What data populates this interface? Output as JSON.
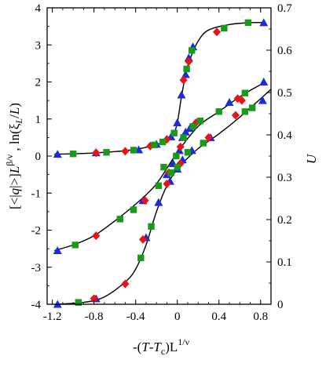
{
  "chart_data": {
    "type": "scatter",
    "title": "",
    "xlabel": {
      "pre": "-(",
      "T": "T",
      "mid": "-",
      "T2": "T",
      "sub": "c",
      "post": ")L",
      "sup": "1/ν"
    },
    "ylabel_left": {
      "open": "[<|",
      "q": "q",
      "close": "|>]",
      "L": "L",
      "sup": "β/ν",
      "comma": " , ln(ξ",
      "sub": "L",
      "tail": "/",
      "L2": "L",
      "end": ")"
    },
    "ylabel_right": "U",
    "xlim": [
      -1.25,
      0.9
    ],
    "ylim_left": [
      -4,
      4
    ],
    "ylim_right": [
      0,
      0.7
    ],
    "x_ticks": [
      "-1.2",
      "-0.8",
      "-0.4",
      "0",
      "0.4",
      "0.8"
    ],
    "x_tick_values": [
      -1.2,
      -0.8,
      -0.4,
      0,
      0.4,
      0.8
    ],
    "y_left_ticks": [
      "-4",
      "-3",
      "-2",
      "-1",
      "0",
      "1",
      "2",
      "3",
      "4"
    ],
    "y_left_tick_values": [
      -4,
      -3,
      -2,
      -1,
      0,
      1,
      2,
      3,
      4
    ],
    "y_right_ticks": [
      "0",
      "0.1",
      "0.2",
      "0.3",
      "0.4",
      "0.5",
      "0.6",
      "0.7"
    ],
    "y_right_tick_values": [
      0,
      0.1,
      0.2,
      0.3,
      0.4,
      0.5,
      0.6,
      0.7
    ],
    "colors": {
      "red": "#ee1111",
      "green": "#1a9a1a",
      "blue": "#1a2bdd",
      "curve": "#000000"
    },
    "curves": [
      {
        "axis": "left",
        "x": [
          -1.18,
          -0.9,
          -0.6,
          -0.4,
          -0.25,
          -0.15,
          -0.08,
          -0.04,
          0,
          0.04,
          0.08,
          0.12,
          0.2,
          0.3,
          0.5,
          0.7,
          0.85
        ],
        "y": [
          0.05,
          0.07,
          0.12,
          0.18,
          0.27,
          0.36,
          0.46,
          0.55,
          0.9,
          1.6,
          2.2,
          2.6,
          3.1,
          3.4,
          3.55,
          3.6,
          3.6
        ]
      },
      {
        "axis": "left",
        "x": [
          -1.18,
          -1.0,
          -0.8,
          -0.6,
          -0.4,
          -0.2,
          0,
          0.2,
          0.4,
          0.6,
          0.75,
          0.85
        ],
        "y": [
          -2.55,
          -2.4,
          -2.15,
          -1.75,
          -1.3,
          -0.75,
          0.1,
          0.8,
          1.2,
          1.6,
          1.85,
          2.0
        ]
      },
      {
        "axis": "left",
        "x": [
          -1.18,
          -0.9,
          -0.7,
          -0.5,
          -0.4,
          -0.3,
          -0.2,
          -0.1,
          0,
          0.1,
          0.2,
          0.4,
          0.6,
          0.9
        ],
        "y": [
          -4.0,
          -3.95,
          -3.8,
          -3.4,
          -3.05,
          -2.4,
          -1.5,
          -0.8,
          -0.35,
          -0.05,
          0.2,
          0.6,
          1.05,
          1.8
        ]
      }
    ],
    "series": [
      {
        "marker": "triangle",
        "color": "blue",
        "axis": "left",
        "points": [
          [
            -1.15,
            0.05
          ],
          [
            -0.78,
            0.09
          ],
          [
            -0.37,
            0.17
          ],
          [
            -0.2,
            0.32
          ],
          [
            -0.06,
            0.52
          ],
          [
            0.0,
            0.9
          ],
          [
            0.04,
            1.65
          ],
          [
            0.08,
            2.2
          ],
          [
            0.11,
            2.65
          ],
          [
            0.15,
            2.95
          ],
          [
            0.83,
            3.6
          ],
          [
            -1.15,
            -2.55
          ],
          [
            -0.33,
            -1.2
          ],
          [
            -0.1,
            -0.5
          ],
          [
            -0.04,
            -0.2
          ],
          [
            0.02,
            0.15
          ],
          [
            0.05,
            0.5
          ],
          [
            0.08,
            0.65
          ],
          [
            0.12,
            0.75
          ],
          [
            0.5,
            1.45
          ],
          [
            0.83,
            2.0
          ],
          [
            -1.15,
            -4.0
          ],
          [
            -0.78,
            -3.85
          ],
          [
            -0.3,
            -2.2
          ],
          [
            -0.18,
            -1.25
          ],
          [
            -0.07,
            -0.68
          ],
          [
            0.0,
            -0.35
          ],
          [
            0.05,
            -0.1
          ],
          [
            0.14,
            0.15
          ],
          [
            0.32,
            0.5
          ],
          [
            0.82,
            1.5
          ]
        ]
      },
      {
        "marker": "diamond",
        "color": "red",
        "axis": "left",
        "points": [
          [
            -0.78,
            0.09
          ],
          [
            -0.5,
            0.13
          ],
          [
            -0.26,
            0.27
          ],
          [
            -0.1,
            0.45
          ],
          [
            0.06,
            2.05
          ],
          [
            0.11,
            2.55
          ],
          [
            0.38,
            3.35
          ],
          [
            -0.78,
            -2.15
          ],
          [
            -0.31,
            -1.2
          ],
          [
            -0.08,
            -0.45
          ],
          [
            0.03,
            0.25
          ],
          [
            0.18,
            0.9
          ],
          [
            0.58,
            1.55
          ],
          [
            0.62,
            1.5
          ],
          [
            -0.8,
            -3.85
          ],
          [
            -0.5,
            -3.45
          ],
          [
            -0.33,
            -2.25
          ],
          [
            -0.1,
            -0.75
          ],
          [
            0.03,
            -0.2
          ],
          [
            0.3,
            0.5
          ],
          [
            0.56,
            1.1
          ]
        ]
      },
      {
        "marker": "square",
        "color": "green",
        "axis": "left",
        "points": [
          [
            -1.0,
            0.06
          ],
          [
            -0.68,
            0.1
          ],
          [
            -0.42,
            0.16
          ],
          [
            -0.22,
            0.3
          ],
          [
            -0.14,
            0.38
          ],
          [
            -0.03,
            0.62
          ],
          [
            0.09,
            2.35
          ],
          [
            0.14,
            2.85
          ],
          [
            0.45,
            3.45
          ],
          [
            0.68,
            3.6
          ],
          [
            -0.98,
            -2.4
          ],
          [
            -0.55,
            -1.7
          ],
          [
            -0.42,
            -1.45
          ],
          [
            -0.18,
            -0.8
          ],
          [
            -0.01,
            0.0
          ],
          [
            0.06,
            0.5
          ],
          [
            0.15,
            0.8
          ],
          [
            0.22,
            0.95
          ],
          [
            0.4,
            1.2
          ],
          [
            0.65,
            1.7
          ],
          [
            -0.95,
            -3.95
          ],
          [
            -0.35,
            -2.75
          ],
          [
            -0.25,
            -1.9
          ],
          [
            -0.13,
            -0.3
          ],
          [
            -0.06,
            -0.45
          ],
          [
            0.0,
            -0.3
          ],
          [
            0.1,
            0.1
          ],
          [
            0.25,
            0.35
          ],
          [
            0.65,
            1.2
          ],
          [
            0.72,
            1.3
          ]
        ]
      }
    ]
  }
}
